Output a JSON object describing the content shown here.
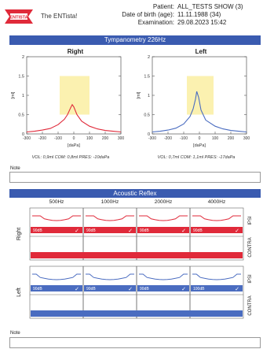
{
  "header": {
    "logo_text": "ENTISTA",
    "app_name": "The ENTista!",
    "patient_label": "Patient:",
    "patient_value": "ALL_TESTS SHOW (3)",
    "dob_label": "Date of birth (age):",
    "dob_value": "11.11.1988 (34)",
    "exam_label": "Examination:",
    "exam_value": "29.08.2023 15:42"
  },
  "tympanometry": {
    "title": "Tympanometry 226Hz",
    "x_axis_label": "[daPa]",
    "y_axis_label": "[ml]",
    "right": {
      "title": "Right",
      "color": "#e02a3a",
      "info": "VOL: 0,9ml COM: 0,8ml PRES: -10daPa",
      "chart_data": {
        "type": "line",
        "xlabel": "[daPa]",
        "ylabel": "[ml]",
        "xlim": [
          -300,
          300
        ],
        "ylim": [
          0,
          2
        ],
        "xticks": [
          "-300",
          "-200",
          "-100",
          "0",
          "100",
          "200",
          "300"
        ],
        "yticks": [
          "0",
          "0.5",
          "1",
          "1.5",
          "2"
        ],
        "shaded_x": [
          -90,
          100
        ],
        "x": [
          -300,
          -250,
          -200,
          -150,
          -100,
          -60,
          -40,
          -20,
          -10,
          0,
          20,
          50,
          100,
          150,
          200,
          250,
          300
        ],
        "y": [
          0.05,
          0.07,
          0.1,
          0.14,
          0.24,
          0.38,
          0.5,
          0.68,
          0.76,
          0.7,
          0.5,
          0.33,
          0.2,
          0.13,
          0.09,
          0.07,
          0.05
        ]
      }
    },
    "left": {
      "title": "Left",
      "color": "#4a6cc0",
      "info": "VOL: 0,7ml COM: 1,1ml PRES: -17daPa",
      "chart_data": {
        "type": "line",
        "xlabel": "[daPa]",
        "ylabel": "[ml]",
        "xlim": [
          -300,
          300
        ],
        "ylim": [
          0,
          2
        ],
        "xticks": [
          "-300",
          "-200",
          "-100",
          "0",
          "100",
          "200",
          "300"
        ],
        "yticks": [
          "0",
          "0.5",
          "1",
          "1.5",
          "2"
        ],
        "shaded_x": [
          -80,
          90
        ],
        "x": [
          -300,
          -250,
          -200,
          -150,
          -100,
          -60,
          -40,
          -25,
          -17,
          -5,
          10,
          40,
          100,
          150,
          200,
          250,
          300
        ],
        "y": [
          0.05,
          0.07,
          0.1,
          0.15,
          0.26,
          0.45,
          0.65,
          0.9,
          1.1,
          0.95,
          0.62,
          0.36,
          0.2,
          0.13,
          0.09,
          0.07,
          0.05
        ]
      }
    }
  },
  "note_label": "Note",
  "acoustic_reflex": {
    "title": "Acoustic Reflex",
    "frequencies": [
      "500Hz",
      "1000Hz",
      "2000Hz",
      "4000Hz"
    ],
    "ipsi_label": "IPSI",
    "contra_label": "CONTRA",
    "right": {
      "label": "Right",
      "color": "#e02a3a",
      "levels": [
        "90dB",
        "90dB",
        "90dB",
        "90dB"
      ]
    },
    "left": {
      "label": "Left",
      "color": "#4a6cc0",
      "levels": [
        "90dB",
        "90dB",
        "90dB",
        "100dB"
      ]
    }
  },
  "note2_label": "Note"
}
